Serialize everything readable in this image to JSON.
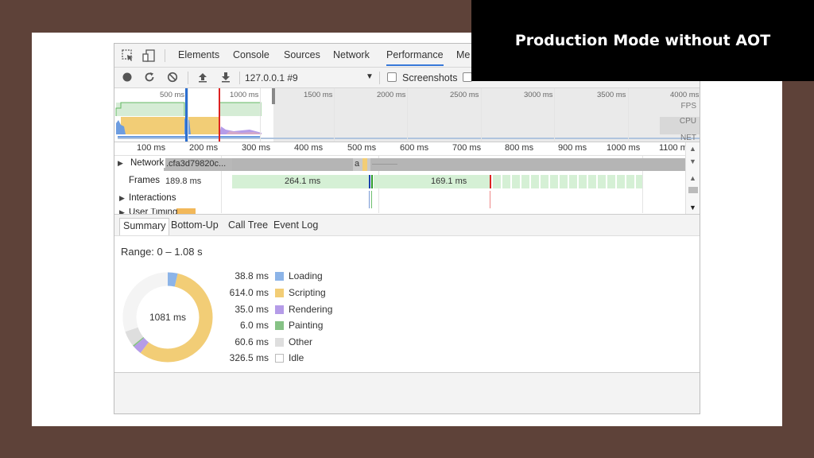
{
  "slide_title": "Production Mode without AOT",
  "tabs": [
    {
      "label": "Elements"
    },
    {
      "label": "Console"
    },
    {
      "label": "Sources"
    },
    {
      "label": "Network"
    },
    {
      "label": "Performance",
      "active": true
    },
    {
      "label": "Me"
    }
  ],
  "toolbar": {
    "profile_select": "127.0.0.1 #9",
    "screenshots_label": "Screenshots"
  },
  "overview": {
    "ticks": [
      "500 ms",
      "1000 ms",
      "1500 ms",
      "2000 ms",
      "2500 ms",
      "3000 ms",
      "3500 ms",
      "4000 ms"
    ],
    "side_labels": [
      "FPS",
      "CPU",
      "NET"
    ]
  },
  "ruler_ticks": [
    "100 ms",
    "200 ms",
    "300 ms",
    "400 ms",
    "500 ms",
    "600 ms",
    "700 ms",
    "800 ms",
    "900 ms",
    "1000 ms",
    "1100 m"
  ],
  "tracks": {
    "network": {
      "label": "Network",
      "file": ".cfa3d79820c...",
      "short": "a"
    },
    "frames": {
      "label": "Frames",
      "durations": [
        "189.8 ms",
        "264.1 ms",
        "169.1 ms"
      ]
    },
    "interactions": {
      "label": "Interactions"
    },
    "user_timing": {
      "label": "User Timing"
    }
  },
  "subtabs": [
    "Summary",
    "Bottom-Up",
    "Call Tree",
    "Event Log"
  ],
  "summary": {
    "range": "Range: 0 – 1.08 s",
    "total": "1081 ms",
    "items": [
      {
        "value": "38.8 ms",
        "name": "Loading",
        "color": "#8cb4e8"
      },
      {
        "value": "614.0 ms",
        "name": "Scripting",
        "color": "#f2cd76"
      },
      {
        "value": "35.0 ms",
        "name": "Rendering",
        "color": "#b59ce8"
      },
      {
        "value": "6.0 ms",
        "name": "Painting",
        "color": "#86c285"
      },
      {
        "value": "60.6 ms",
        "name": "Other",
        "color": "#dedede"
      },
      {
        "value": "326.5 ms",
        "name": "Idle",
        "color": "#ffffff"
      }
    ],
    "donut_values": [
      38.8,
      614.0,
      35.0,
      6.0,
      60.6,
      326.5
    ]
  }
}
